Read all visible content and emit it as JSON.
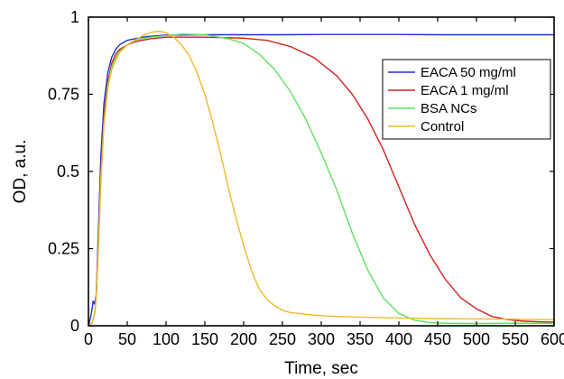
{
  "chart_data": {
    "type": "line",
    "xlabel": "Time, sec",
    "ylabel": "OD, a.u.",
    "xlim": [
      0,
      600
    ],
    "ylim": [
      0,
      1
    ],
    "xticks": [
      "0",
      "50",
      "100",
      "150",
      "200",
      "250",
      "300",
      "350",
      "400",
      "450",
      "500",
      "550",
      "600"
    ],
    "yticks": [
      "0",
      "0.25",
      "0.5",
      "0.75",
      "1"
    ],
    "grid": false,
    "legend": "top-right",
    "series": [
      {
        "name": "EACA 50 mg/ml",
        "color": "#1f2fd0",
        "x": [
          0,
          3,
          5,
          6,
          8,
          10,
          13,
          16,
          20,
          25,
          30,
          35,
          40,
          50,
          60,
          70,
          80,
          90,
          100,
          120,
          150,
          200,
          250,
          300,
          350,
          400,
          450,
          500,
          550,
          600
        ],
        "y": [
          0.0,
          0.03,
          0.06,
          0.08,
          0.07,
          0.1,
          0.32,
          0.55,
          0.72,
          0.82,
          0.87,
          0.895,
          0.91,
          0.925,
          0.93,
          0.935,
          0.938,
          0.94,
          0.942,
          0.942,
          0.943,
          0.943,
          0.943,
          0.944,
          0.944,
          0.944,
          0.943,
          0.943,
          0.943,
          0.943
        ]
      },
      {
        "name": "EACA 1 mg/ml",
        "color": "#d12020",
        "x": [
          0,
          5,
          8,
          10,
          13,
          16,
          20,
          25,
          30,
          35,
          40,
          50,
          60,
          80,
          100,
          150,
          200,
          230,
          260,
          290,
          320,
          340,
          360,
          380,
          400,
          420,
          440,
          460,
          480,
          500,
          520,
          540,
          560,
          580,
          600
        ],
        "y": [
          0.0,
          0.01,
          0.04,
          0.09,
          0.28,
          0.5,
          0.68,
          0.79,
          0.85,
          0.88,
          0.895,
          0.91,
          0.92,
          0.93,
          0.935,
          0.935,
          0.932,
          0.925,
          0.905,
          0.87,
          0.81,
          0.75,
          0.67,
          0.57,
          0.45,
          0.33,
          0.23,
          0.15,
          0.09,
          0.055,
          0.03,
          0.02,
          0.015,
          0.013,
          0.012
        ]
      },
      {
        "name": "BSA NCs",
        "color": "#5ee05e",
        "x": [
          0,
          5,
          8,
          10,
          13,
          16,
          20,
          25,
          30,
          35,
          40,
          50,
          60,
          80,
          100,
          120,
          150,
          180,
          200,
          220,
          240,
          260,
          280,
          300,
          320,
          340,
          360,
          380,
          400,
          420,
          440,
          460,
          500,
          550,
          600
        ],
        "y": [
          0.0,
          0.01,
          0.04,
          0.09,
          0.27,
          0.48,
          0.66,
          0.78,
          0.84,
          0.87,
          0.89,
          0.91,
          0.925,
          0.935,
          0.94,
          0.945,
          0.943,
          0.93,
          0.915,
          0.88,
          0.83,
          0.76,
          0.67,
          0.56,
          0.44,
          0.3,
          0.18,
          0.09,
          0.04,
          0.018,
          0.01,
          0.008,
          0.007,
          0.008,
          0.008
        ]
      },
      {
        "name": "Control",
        "color": "#f0b92c",
        "x": [
          0,
          5,
          8,
          10,
          13,
          16,
          20,
          25,
          30,
          35,
          40,
          50,
          60,
          70,
          80,
          90,
          100,
          110,
          120,
          130,
          140,
          150,
          160,
          170,
          180,
          190,
          200,
          210,
          220,
          230,
          240,
          250,
          260,
          270,
          280,
          290,
          300,
          320,
          350,
          400,
          450,
          500,
          550,
          600
        ],
        "y": [
          0.0,
          0.01,
          0.04,
          0.09,
          0.26,
          0.46,
          0.65,
          0.77,
          0.83,
          0.86,
          0.885,
          0.91,
          0.925,
          0.94,
          0.95,
          0.955,
          0.95,
          0.935,
          0.91,
          0.875,
          0.82,
          0.75,
          0.66,
          0.56,
          0.45,
          0.35,
          0.26,
          0.18,
          0.12,
          0.085,
          0.065,
          0.05,
          0.043,
          0.04,
          0.037,
          0.035,
          0.033,
          0.03,
          0.028,
          0.025,
          0.023,
          0.022,
          0.021,
          0.02
        ]
      }
    ]
  }
}
